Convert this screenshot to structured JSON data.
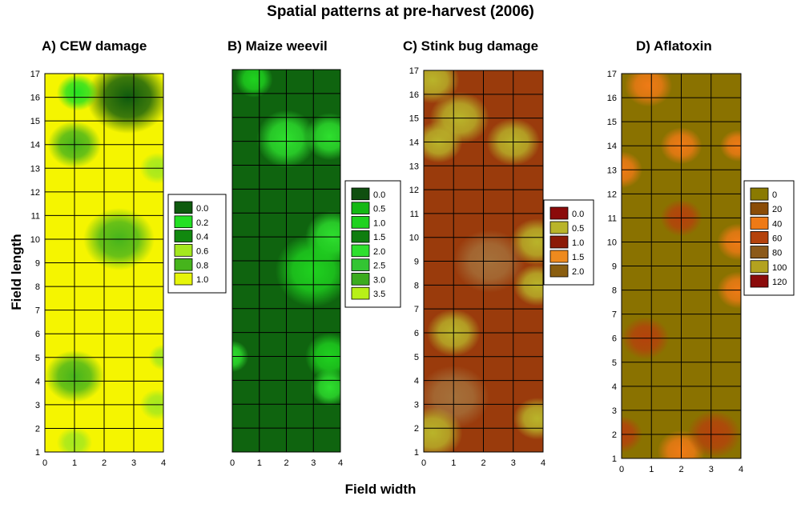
{
  "figure": {
    "title": "Spatial patterns at pre-harvest (2006)",
    "ylabel": "Field length",
    "xlabel": "Field width"
  },
  "chart_data": [
    {
      "type": "heatmap",
      "title": "A) CEW damage",
      "xlim": [
        0,
        4
      ],
      "ylim": [
        1,
        17
      ],
      "x_ticks": [
        "0",
        "1",
        "2",
        "3",
        "4"
      ],
      "y_ticks": [
        "1",
        "2",
        "3",
        "4",
        "5",
        "6",
        "7",
        "8",
        "9",
        "10",
        "11",
        "12",
        "13",
        "14",
        "15",
        "16",
        "17"
      ],
      "background": "#f5f500",
      "legend": {
        "position": "right",
        "items": [
          {
            "label": "0.0",
            "color": "#0e5a0e"
          },
          {
            "label": "0.2",
            "color": "#23e023"
          },
          {
            "label": "0.4",
            "color": "#11880f"
          },
          {
            "label": "0.6",
            "color": "#a4e81f"
          },
          {
            "label": "0.8",
            "color": "#46b41c"
          },
          {
            "label": "1.0",
            "color": "#e6f50a"
          }
        ]
      },
      "spots": [
        {
          "x": 2.8,
          "y": 16,
          "r": 1.4,
          "color": "#0e5a0e"
        },
        {
          "x": 1.1,
          "y": 16.2,
          "r": 0.7,
          "color": "#23e023"
        },
        {
          "x": 1.0,
          "y": 14.0,
          "r": 0.9,
          "color": "#46b41c"
        },
        {
          "x": 2.5,
          "y": 10.0,
          "r": 1.2,
          "color": "#46b41c"
        },
        {
          "x": 3.8,
          "y": 13.0,
          "r": 0.6,
          "color": "#a4e81f"
        },
        {
          "x": 1.0,
          "y": 4.2,
          "r": 1.0,
          "color": "#46b41c"
        },
        {
          "x": 4.0,
          "y": 5.0,
          "r": 0.5,
          "color": "#a4e81f"
        },
        {
          "x": 3.8,
          "y": 3.0,
          "r": 0.6,
          "color": "#a4e81f"
        },
        {
          "x": 1.0,
          "y": 1.4,
          "r": 0.6,
          "color": "#a4e81f"
        }
      ]
    },
    {
      "type": "heatmap",
      "title": "B) Maize weevil",
      "xlim": [
        0,
        4
      ],
      "ylim": [
        1,
        17
      ],
      "x_ticks": [
        "0",
        "1",
        "2",
        "3",
        "4"
      ],
      "y_ticks": [],
      "background": "#0f640f",
      "legend": {
        "position": "right",
        "items": [
          {
            "label": "0.0",
            "color": "#0f4f0f"
          },
          {
            "label": "0.5",
            "color": "#14b814"
          },
          {
            "label": "1.0",
            "color": "#1fd21f"
          },
          {
            "label": "1.5",
            "color": "#0f7d0f"
          },
          {
            "label": "2.0",
            "color": "#2ee02e"
          },
          {
            "label": "2.5",
            "color": "#33c533"
          },
          {
            "label": "3.0",
            "color": "#3cab1e"
          },
          {
            "label": "3.5",
            "color": "#b8f018"
          }
        ]
      },
      "spots": [
        {
          "x": 2.0,
          "y": 14.1,
          "r": 1.1,
          "color": "#2ee02e"
        },
        {
          "x": 3.6,
          "y": 14.2,
          "r": 0.9,
          "color": "#2ee02e"
        },
        {
          "x": 0.8,
          "y": 16.6,
          "r": 0.7,
          "color": "#1fd21f"
        },
        {
          "x": 3.7,
          "y": 10.0,
          "r": 1.0,
          "color": "#2ee02e"
        },
        {
          "x": 3.0,
          "y": 8.6,
          "r": 1.4,
          "color": "#1fd21f"
        },
        {
          "x": 3.6,
          "y": 5.0,
          "r": 0.9,
          "color": "#1fd21f"
        },
        {
          "x": 3.6,
          "y": 3.7,
          "r": 0.7,
          "color": "#2ee02e"
        },
        {
          "x": 0.0,
          "y": 5.0,
          "r": 0.6,
          "color": "#2ee02e"
        }
      ]
    },
    {
      "type": "heatmap",
      "title": "C) Stink bug damage",
      "xlim": [
        0,
        4
      ],
      "ylim": [
        1,
        17
      ],
      "x_ticks": [
        "0",
        "1",
        "2",
        "3",
        "4"
      ],
      "y_ticks": [
        "1",
        "2",
        "3",
        "4",
        "5",
        "6",
        "7",
        "8",
        "9",
        "10",
        "11",
        "12",
        "13",
        "14",
        "15",
        "16",
        "17"
      ],
      "background": "#9a3b0c",
      "legend": {
        "position": "right",
        "items": [
          {
            "label": "0.0",
            "color": "#8b0b0b"
          },
          {
            "label": "0.5",
            "color": "#b9b42a"
          },
          {
            "label": "1.0",
            "color": "#8c1a06"
          },
          {
            "label": "1.5",
            "color": "#ee8a1e"
          },
          {
            "label": "2.0",
            "color": "#8a5e10"
          }
        ]
      },
      "spots": [
        {
          "x": 0.3,
          "y": 16.6,
          "r": 0.9,
          "color": "#b9b42a"
        },
        {
          "x": 1.2,
          "y": 15.0,
          "r": 1.0,
          "color": "#b9b42a"
        },
        {
          "x": 3.0,
          "y": 14.0,
          "r": 0.9,
          "color": "#b9b42a"
        },
        {
          "x": 0.5,
          "y": 14.0,
          "r": 0.8,
          "color": "#b9b42a"
        },
        {
          "x": 3.8,
          "y": 9.8,
          "r": 0.9,
          "color": "#b9b42a"
        },
        {
          "x": 3.8,
          "y": 8.0,
          "r": 0.8,
          "color": "#b9b42a"
        },
        {
          "x": 2.2,
          "y": 9.0,
          "r": 1.2,
          "color": "#a5703a"
        },
        {
          "x": 1.0,
          "y": 6.0,
          "r": 0.9,
          "color": "#b9b42a"
        },
        {
          "x": 1.0,
          "y": 3.3,
          "r": 1.2,
          "color": "#a5703a"
        },
        {
          "x": 0.3,
          "y": 1.8,
          "r": 1.0,
          "color": "#b9b42a"
        },
        {
          "x": 3.8,
          "y": 2.4,
          "r": 0.8,
          "color": "#b9b42a"
        }
      ]
    },
    {
      "type": "heatmap",
      "title": "D) Aflatoxin",
      "xlim": [
        0,
        4
      ],
      "ylim": [
        1,
        17
      ],
      "x_ticks": [
        "0",
        "1",
        "2",
        "3",
        "4"
      ],
      "y_ticks": [
        "1",
        "2",
        "3",
        "4",
        "5",
        "6",
        "7",
        "8",
        "9",
        "10",
        "11",
        "12",
        "13",
        "14",
        "15",
        "16",
        "17"
      ],
      "background": "#8a7200",
      "legend": {
        "position": "right",
        "items": [
          {
            "label": "0",
            "color": "#8a7a00"
          },
          {
            "label": "20",
            "color": "#8a4c07"
          },
          {
            "label": "40",
            "color": "#ef7a16"
          },
          {
            "label": "60",
            "color": "#b4420c"
          },
          {
            "label": "80",
            "color": "#8c5a1a"
          },
          {
            "label": "100",
            "color": "#b3a21f"
          },
          {
            "label": "120",
            "color": "#8b0b0b"
          }
        ]
      },
      "spots": [
        {
          "x": 0.9,
          "y": 16.5,
          "r": 0.8,
          "color": "#ef7a16"
        },
        {
          "x": 0.0,
          "y": 13.0,
          "r": 0.7,
          "color": "#ef7a16"
        },
        {
          "x": 2.0,
          "y": 14.0,
          "r": 0.7,
          "color": "#ef7a16"
        },
        {
          "x": 3.9,
          "y": 14.0,
          "r": 0.6,
          "color": "#ef7a16"
        },
        {
          "x": 2.0,
          "y": 11.0,
          "r": 0.7,
          "color": "#b4420c"
        },
        {
          "x": 3.9,
          "y": 10.0,
          "r": 0.7,
          "color": "#ef7a16"
        },
        {
          "x": 3.9,
          "y": 8.0,
          "r": 0.7,
          "color": "#ef7a16"
        },
        {
          "x": 0.8,
          "y": 6.0,
          "r": 0.8,
          "color": "#b4420c"
        },
        {
          "x": 2.0,
          "y": 1.3,
          "r": 0.8,
          "color": "#ef7a16"
        },
        {
          "x": 0.0,
          "y": 2.0,
          "r": 0.7,
          "color": "#b4420c"
        },
        {
          "x": 3.1,
          "y": 2.0,
          "r": 0.9,
          "color": "#b4420c"
        }
      ]
    }
  ]
}
